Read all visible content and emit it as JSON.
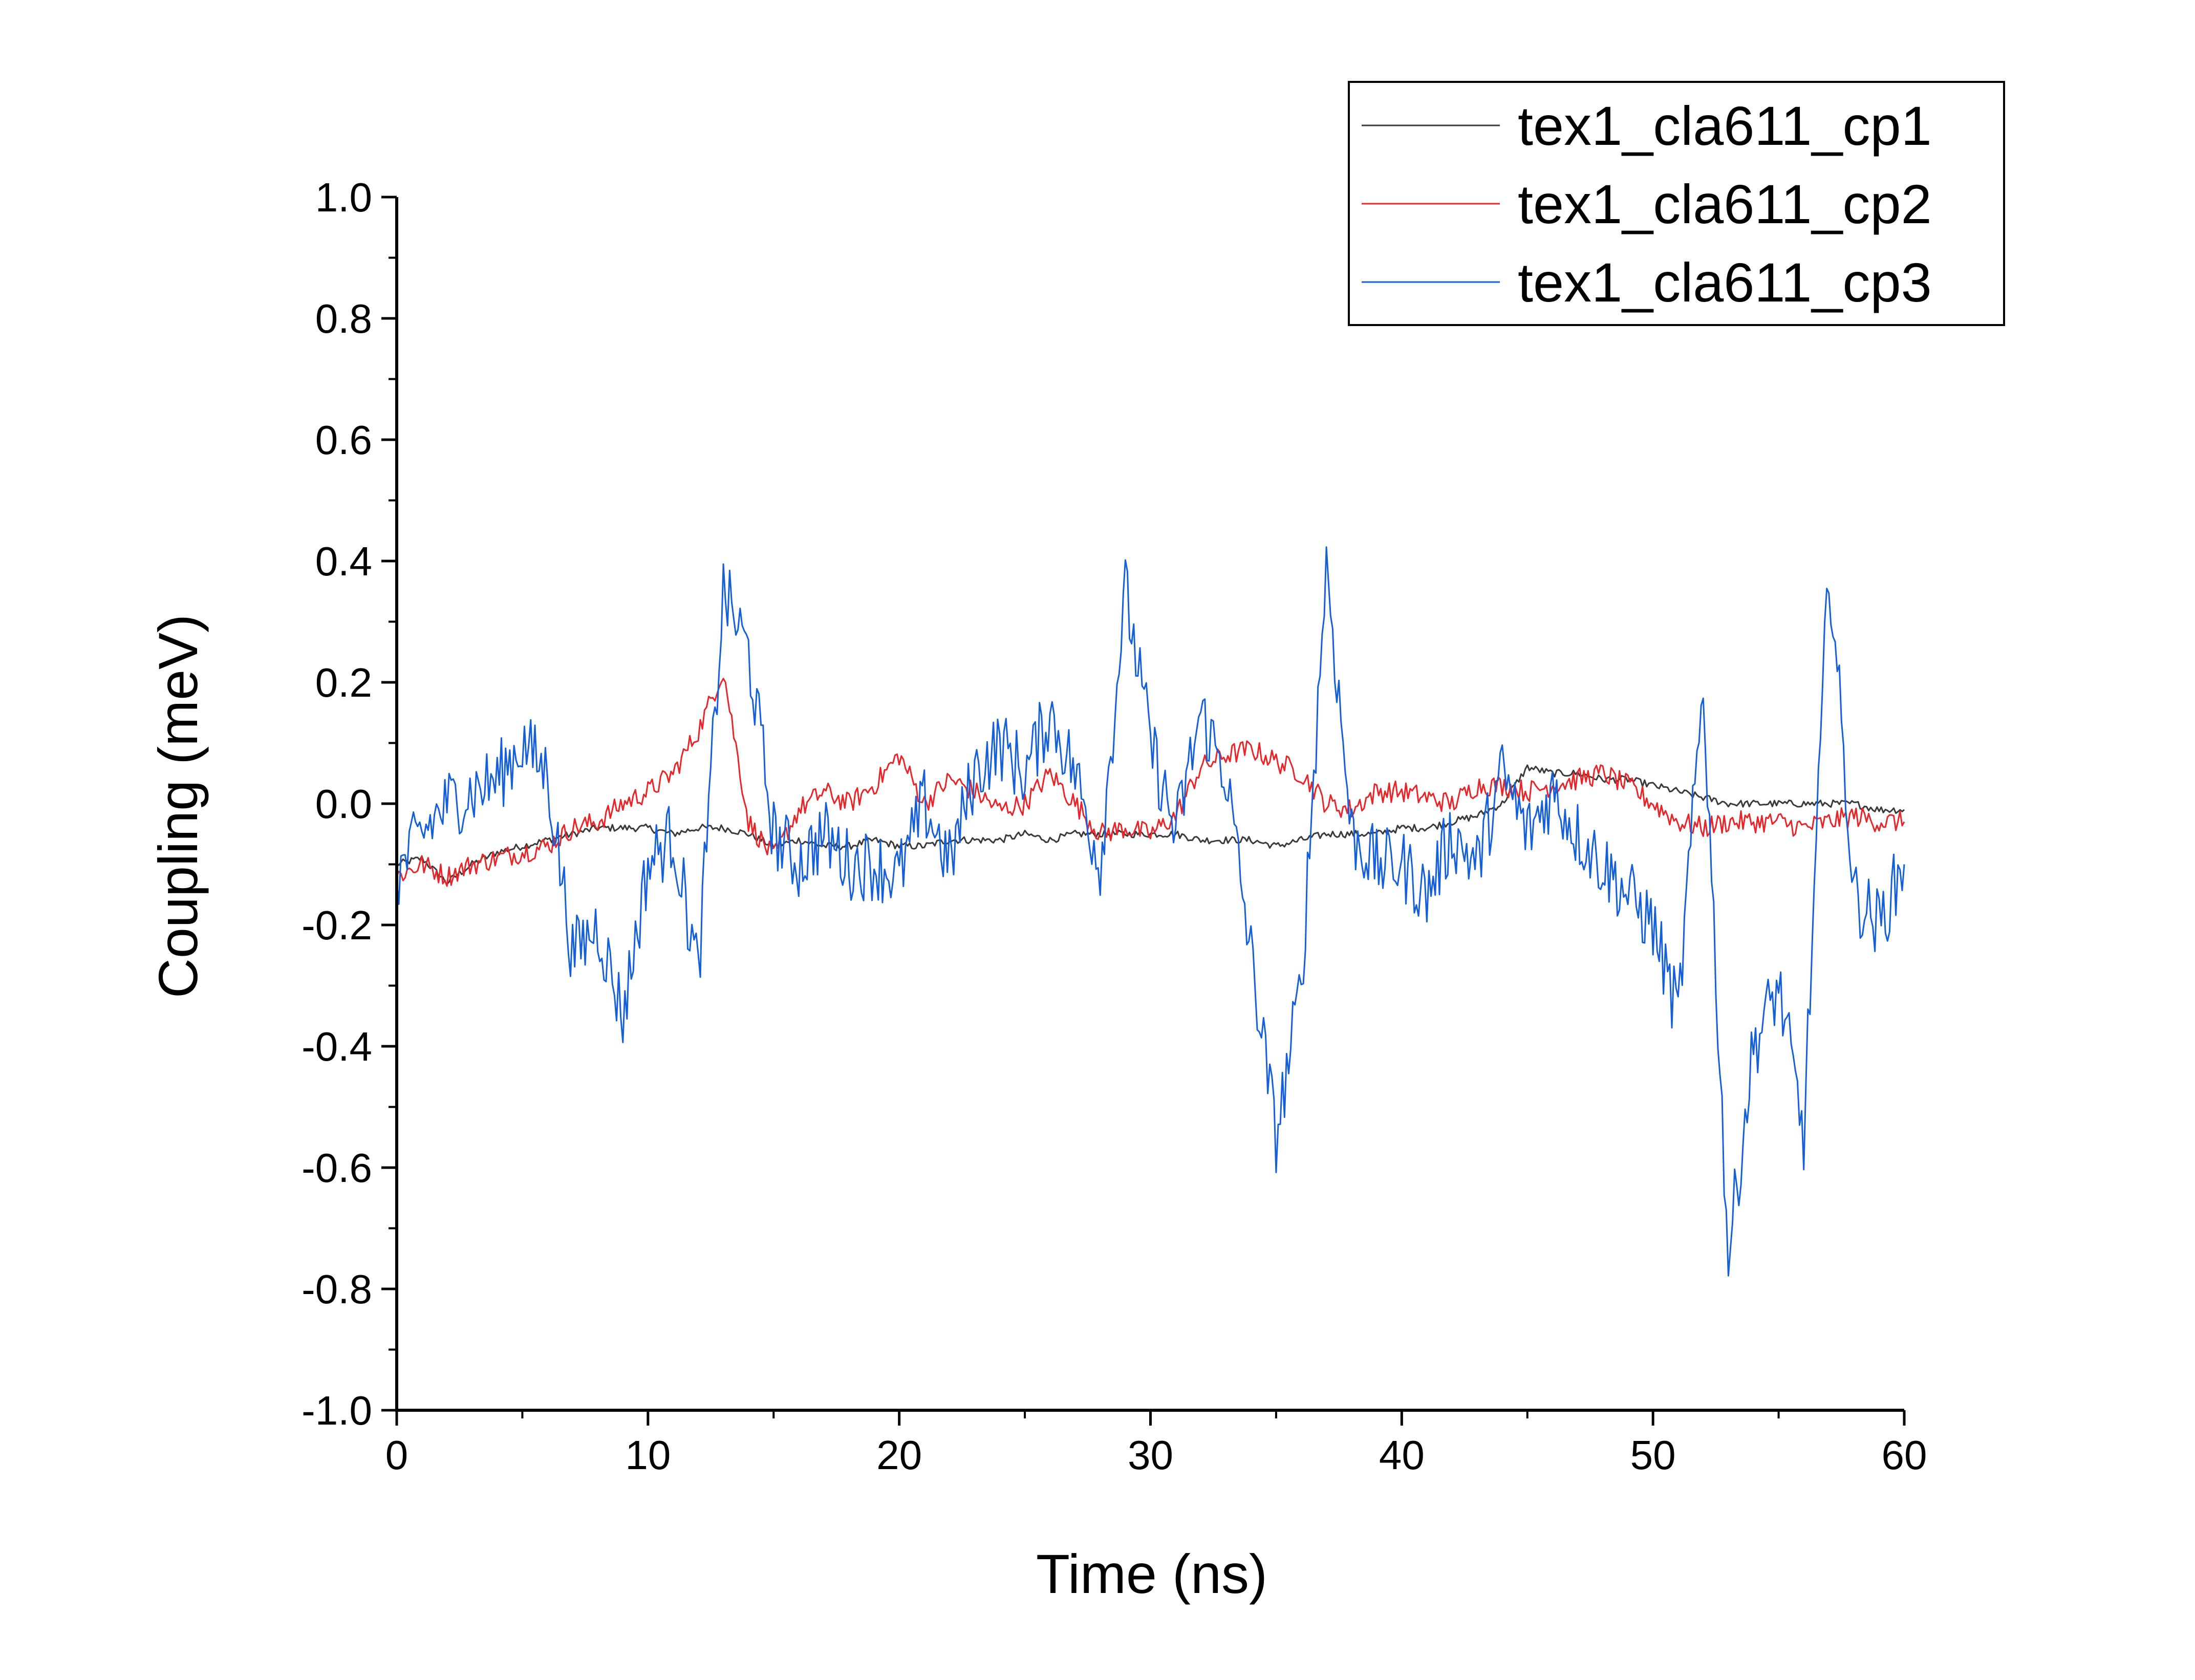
{
  "chart_data": {
    "type": "line",
    "title": "",
    "xlabel": "Time (ns)",
    "ylabel": "Coupling (meV)",
    "xlim": [
      0,
      60
    ],
    "ylim": [
      -1.0,
      1.0
    ],
    "xticks": [
      0,
      10,
      20,
      30,
      40,
      50,
      60
    ],
    "xtick_labels": [
      "0",
      "10",
      "20",
      "30",
      "40",
      "50",
      "60"
    ],
    "yticks": [
      -1.0,
      -0.8,
      -0.6,
      -0.4,
      -0.2,
      0.0,
      0.2,
      0.4,
      0.6,
      0.8,
      1.0
    ],
    "ytick_labels": [
      "-1.0",
      "-0.8",
      "-0.6",
      "-0.4",
      "-0.2",
      "0.0",
      "0.2",
      "0.4",
      "0.6",
      "0.8",
      "1.0"
    ],
    "grid": false,
    "legend_position": "top-right",
    "series": [
      {
        "name": "tex1_cla611_cp1",
        "color": "#3a3a3a",
        "x": [
          0,
          1,
          2,
          3,
          4,
          5,
          6,
          7,
          8,
          9,
          10,
          11,
          12,
          13,
          14,
          15,
          16,
          17,
          18,
          19,
          20,
          21,
          22,
          23,
          24,
          25,
          26,
          27,
          28,
          29,
          30,
          31,
          32,
          33,
          34,
          35,
          36,
          37,
          38,
          39,
          40,
          41,
          42,
          43,
          44,
          45,
          46,
          47,
          48,
          49,
          50,
          51,
          52,
          53,
          54,
          55,
          56,
          57,
          58,
          59,
          60
        ],
        "y": [
          -0.1,
          -0.09,
          -0.13,
          -0.1,
          -0.08,
          -0.07,
          -0.06,
          -0.05,
          -0.04,
          -0.04,
          -0.04,
          -0.05,
          -0.04,
          -0.04,
          -0.05,
          -0.07,
          -0.06,
          -0.07,
          -0.07,
          -0.06,
          -0.07,
          -0.07,
          -0.06,
          -0.06,
          -0.06,
          -0.05,
          -0.06,
          -0.05,
          -0.05,
          -0.05,
          -0.05,
          -0.05,
          -0.06,
          -0.06,
          -0.06,
          -0.07,
          -0.06,
          -0.05,
          -0.05,
          -0.05,
          -0.04,
          -0.04,
          -0.03,
          -0.02,
          0.0,
          0.06,
          0.05,
          0.05,
          0.04,
          0.04,
          0.03,
          0.02,
          0.01,
          0.0,
          0.0,
          0.0,
          0.0,
          0.0,
          0.0,
          -0.01,
          -0.01
        ]
      },
      {
        "name": "tex1_cla611_cp2",
        "color": "#e8262a",
        "x": [
          0,
          1,
          2,
          3,
          4,
          5,
          6,
          7,
          8,
          9,
          10,
          11,
          12,
          13,
          14,
          15,
          16,
          17,
          18,
          19,
          20,
          21,
          22,
          23,
          24,
          25,
          26,
          27,
          28,
          29,
          30,
          31,
          32,
          33,
          34,
          35,
          36,
          37,
          38,
          39,
          40,
          41,
          42,
          43,
          44,
          45,
          46,
          47,
          48,
          49,
          50,
          51,
          52,
          53,
          54,
          55,
          56,
          57,
          58,
          59,
          60
        ],
        "y": [
          -0.12,
          -0.1,
          -0.12,
          -0.1,
          -0.09,
          -0.08,
          -0.07,
          -0.04,
          -0.03,
          0.0,
          0.02,
          0.05,
          0.12,
          0.22,
          -0.03,
          -0.09,
          -0.01,
          0.02,
          0.0,
          0.03,
          0.08,
          0.0,
          0.04,
          0.02,
          -0.01,
          0.0,
          0.05,
          0.0,
          -0.05,
          -0.04,
          -0.05,
          -0.02,
          0.06,
          0.08,
          0.09,
          0.07,
          0.05,
          0.0,
          -0.01,
          0.02,
          0.02,
          0.01,
          0.0,
          0.03,
          0.03,
          0.02,
          0.03,
          0.04,
          0.05,
          0.03,
          0.0,
          -0.03,
          -0.04,
          -0.03,
          -0.03,
          -0.03,
          -0.04,
          -0.03,
          -0.02,
          -0.03,
          -0.03
        ]
      },
      {
        "name": "tex1_cla611_cp3",
        "color": "#1560d8",
        "x": [
          0,
          1,
          2,
          3,
          4,
          5,
          6,
          7,
          8,
          9,
          10,
          11,
          12,
          13,
          14,
          15,
          16,
          17,
          18,
          19,
          20,
          21,
          22,
          23,
          24,
          25,
          26,
          27,
          28,
          29,
          30,
          31,
          32,
          33,
          34,
          35,
          36,
          37,
          38,
          39,
          40,
          41,
          42,
          43,
          44,
          45,
          46,
          47,
          48,
          49,
          50,
          51,
          52,
          53,
          54,
          55,
          56,
          57,
          58,
          59,
          60
        ],
        "y": [
          -0.12,
          -0.05,
          0.0,
          0.02,
          0.04,
          0.1,
          0.05,
          -0.25,
          -0.2,
          -0.35,
          -0.1,
          -0.05,
          -0.28,
          0.35,
          0.25,
          -0.05,
          -0.1,
          -0.05,
          -0.1,
          -0.1,
          -0.12,
          0.0,
          -0.1,
          0.05,
          0.1,
          0.05,
          0.15,
          0.05,
          -0.1,
          0.35,
          0.1,
          -0.05,
          0.15,
          0.05,
          -0.25,
          -0.55,
          -0.3,
          0.4,
          -0.05,
          -0.1,
          -0.1,
          -0.15,
          -0.05,
          -0.1,
          0.05,
          -0.05,
          0.02,
          -0.05,
          -0.1,
          -0.15,
          -0.2,
          -0.35,
          0.2,
          -0.75,
          -0.4,
          -0.3,
          -0.55,
          0.4,
          -0.15,
          -0.2,
          -0.1
        ]
      }
    ]
  }
}
